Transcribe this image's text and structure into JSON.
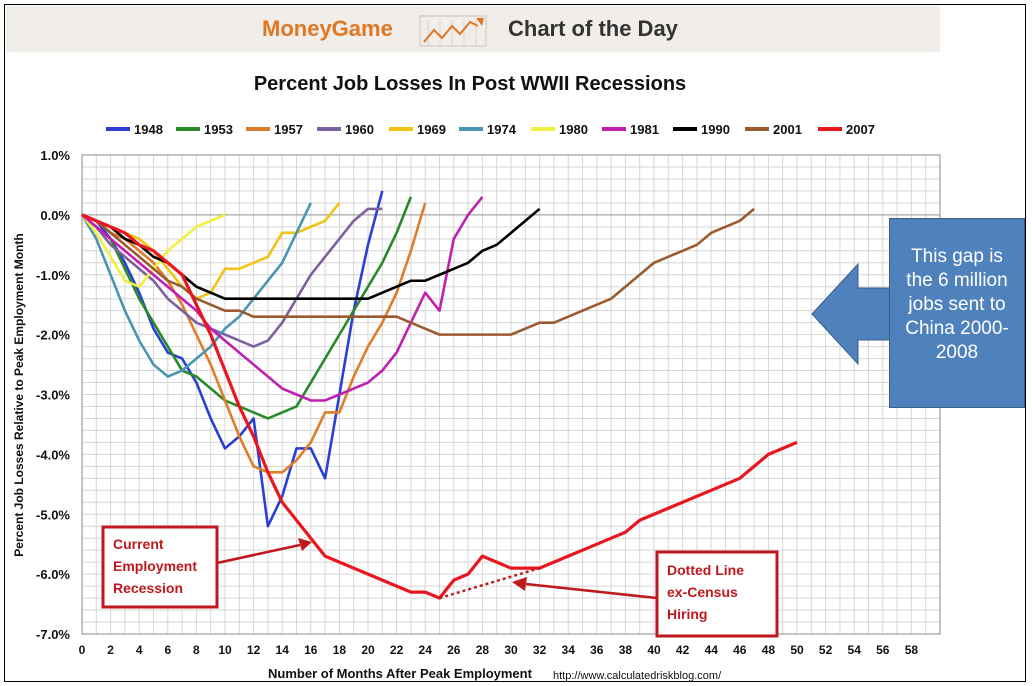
{
  "banner": {
    "brand": "MoneyGame",
    "title": "Chart of the Day",
    "icon": "trend-arrow-icon",
    "brand_color": "#e07722"
  },
  "source": "http://www.calculatedriskblog.com/",
  "callout": {
    "lines": [
      "This gap is",
      "the 6 million",
      "jobs sent to",
      "China 2000-",
      "2008"
    ],
    "color": "#4f81bd"
  },
  "annotations": {
    "current": [
      "Current",
      "Employment",
      "Recession"
    ],
    "dotted": [
      "Dotted Line",
      "ex-Census",
      "Hiring"
    ],
    "color": "#c0181f"
  },
  "chart_data": {
    "type": "line",
    "title": "Percent Job Losses In Post WWII Recessions",
    "xlabel": "Number of Months After Peak Employment",
    "ylabel": "Percent Job Losses Relative to Peak Employment Month",
    "xlim": [
      0,
      60
    ],
    "ylim": [
      -7.0,
      1.0
    ],
    "x_ticks": [
      0,
      2,
      4,
      6,
      8,
      10,
      12,
      14,
      16,
      18,
      20,
      22,
      24,
      26,
      28,
      30,
      32,
      34,
      36,
      38,
      40,
      42,
      44,
      46,
      48,
      50,
      52,
      54,
      56,
      58
    ],
    "y_ticks": [
      1.0,
      0.0,
      -1.0,
      -2.0,
      -3.0,
      -4.0,
      -5.0,
      -6.0,
      -7.0
    ],
    "y_tick_labels": [
      "1.0%",
      "0.0%",
      "-1.0%",
      "-2.0%",
      "-3.0%",
      "-4.0%",
      "-5.0%",
      "-6.0%",
      "-7.0%"
    ],
    "grid": true,
    "legend_position": "top",
    "series": [
      {
        "name": "1948",
        "color": "#2a3fd6",
        "values": [
          0,
          -0.1,
          -0.4,
          -0.8,
          -1.3,
          -1.9,
          -2.3,
          -2.4,
          -2.8,
          -3.4,
          -3.9,
          -3.7,
          -3.4,
          -5.2,
          -4.7,
          -3.9,
          -3.9,
          -4.4,
          -3.0,
          -1.6,
          -0.5,
          0.4
        ]
      },
      {
        "name": "1953",
        "color": "#2a8a2a",
        "values": [
          0,
          -0.2,
          -0.4,
          -0.9,
          -1.4,
          -1.8,
          -2.2,
          -2.6,
          -2.7,
          -2.9,
          -3.1,
          -3.2,
          -3.3,
          -3.4,
          -3.3,
          -3.2,
          -2.8,
          -2.4,
          -2.0,
          -1.6,
          -1.2,
          -0.8,
          -0.3,
          0.3
        ]
      },
      {
        "name": "1957",
        "color": "#e07d28",
        "values": [
          0,
          -0.1,
          -0.3,
          -0.4,
          -0.6,
          -0.8,
          -1.1,
          -1.5,
          -2.0,
          -2.5,
          -3.1,
          -3.7,
          -4.2,
          -4.3,
          -4.3,
          -4.1,
          -3.8,
          -3.3,
          -3.3,
          -2.7,
          -2.2,
          -1.8,
          -1.3,
          -0.6,
          0.2
        ]
      },
      {
        "name": "1960",
        "color": "#7d60a0",
        "values": [
          0,
          -0.2,
          -0.5,
          -0.7,
          -0.9,
          -1.1,
          -1.4,
          -1.6,
          -1.8,
          -1.9,
          -2.0,
          -2.1,
          -2.2,
          -2.1,
          -1.8,
          -1.4,
          -1.0,
          -0.7,
          -0.4,
          -0.1,
          0.1,
          0.1
        ]
      },
      {
        "name": "1969",
        "color": "#f2c314",
        "values": [
          0,
          -0.1,
          -0.2,
          -0.3,
          -0.4,
          -0.6,
          -0.9,
          -1.2,
          -1.4,
          -1.3,
          -0.9,
          -0.9,
          -0.8,
          -0.7,
          -0.3,
          -0.3,
          -0.2,
          -0.1,
          0.2
        ]
      },
      {
        "name": "1974",
        "color": "#4a95b0",
        "values": [
          0,
          -0.4,
          -1.0,
          -1.6,
          -2.1,
          -2.5,
          -2.7,
          -2.6,
          -2.4,
          -2.2,
          -1.9,
          -1.7,
          -1.4,
          -1.1,
          -0.8,
          -0.3,
          0.2
        ]
      },
      {
        "name": "1980",
        "color": "#f0f040",
        "values": [
          0,
          -0.3,
          -0.7,
          -1.1,
          -1.2,
          -0.9,
          -0.6,
          -0.4,
          -0.2,
          -0.1,
          0.0
        ]
      },
      {
        "name": "1981",
        "color": "#c020b0",
        "values": [
          0,
          -0.2,
          -0.4,
          -0.6,
          -0.8,
          -1.0,
          -1.2,
          -1.4,
          -1.6,
          -1.9,
          -2.1,
          -2.3,
          -2.5,
          -2.7,
          -2.9,
          -3.0,
          -3.1,
          -3.1,
          -3.0,
          -2.9,
          -2.8,
          -2.6,
          -2.3,
          -1.8,
          -1.3,
          -1.6,
          -0.4,
          0.0,
          0.3
        ]
      },
      {
        "name": "1990",
        "color": "#000000",
        "values": [
          0,
          -0.1,
          -0.2,
          -0.4,
          -0.5,
          -0.7,
          -0.8,
          -1.0,
          -1.2,
          -1.3,
          -1.4,
          -1.4,
          -1.4,
          -1.4,
          -1.4,
          -1.4,
          -1.4,
          -1.4,
          -1.4,
          -1.4,
          -1.4,
          -1.3,
          -1.2,
          -1.1,
          -1.1,
          -1.0,
          -0.9,
          -0.8,
          -0.6,
          -0.5,
          -0.3,
          -0.1,
          0.1
        ]
      },
      {
        "name": "2001",
        "color": "#9c5a30",
        "values": [
          0,
          -0.1,
          -0.3,
          -0.5,
          -0.7,
          -0.9,
          -1.1,
          -1.2,
          -1.4,
          -1.5,
          -1.6,
          -1.6,
          -1.7,
          -1.7,
          -1.7,
          -1.7,
          -1.7,
          -1.7,
          -1.7,
          -1.7,
          -1.7,
          -1.7,
          -1.7,
          -1.8,
          -1.9,
          -2.0,
          -2.0,
          -2.0,
          -2.0,
          -2.0,
          -2.0,
          -1.9,
          -1.8,
          -1.8,
          -1.7,
          -1.6,
          -1.5,
          -1.4,
          -1.2,
          -1.0,
          -0.8,
          -0.7,
          -0.6,
          -0.5,
          -0.3,
          -0.2,
          -0.1,
          0.1
        ]
      },
      {
        "name": "2007",
        "color": "#e8161e",
        "values": [
          0,
          -0.1,
          -0.2,
          -0.3,
          -0.5,
          -0.6,
          -0.8,
          -1.0,
          -1.5,
          -2.0,
          -2.6,
          -3.2,
          -3.7,
          -4.3,
          -4.8,
          -5.1,
          -5.4,
          -5.7,
          -5.8,
          -5.9,
          -6.0,
          -6.1,
          -6.2,
          -6.3,
          -6.3,
          -6.4,
          -6.1,
          -6.0,
          -5.7,
          -5.8,
          -5.9,
          -5.9,
          -5.9,
          -5.8,
          -5.7,
          -5.6,
          -5.5,
          -5.4,
          -5.3,
          -5.1,
          -5.0,
          -4.9,
          -4.8,
          -4.7,
          -4.6,
          -4.5,
          -4.4,
          -4.2,
          -4.0,
          -3.9,
          -3.8
        ]
      }
    ],
    "dotted_segment": {
      "x": [
        25,
        32
      ],
      "y": [
        -6.4,
        -5.9
      ],
      "color": "#c0181f"
    }
  }
}
